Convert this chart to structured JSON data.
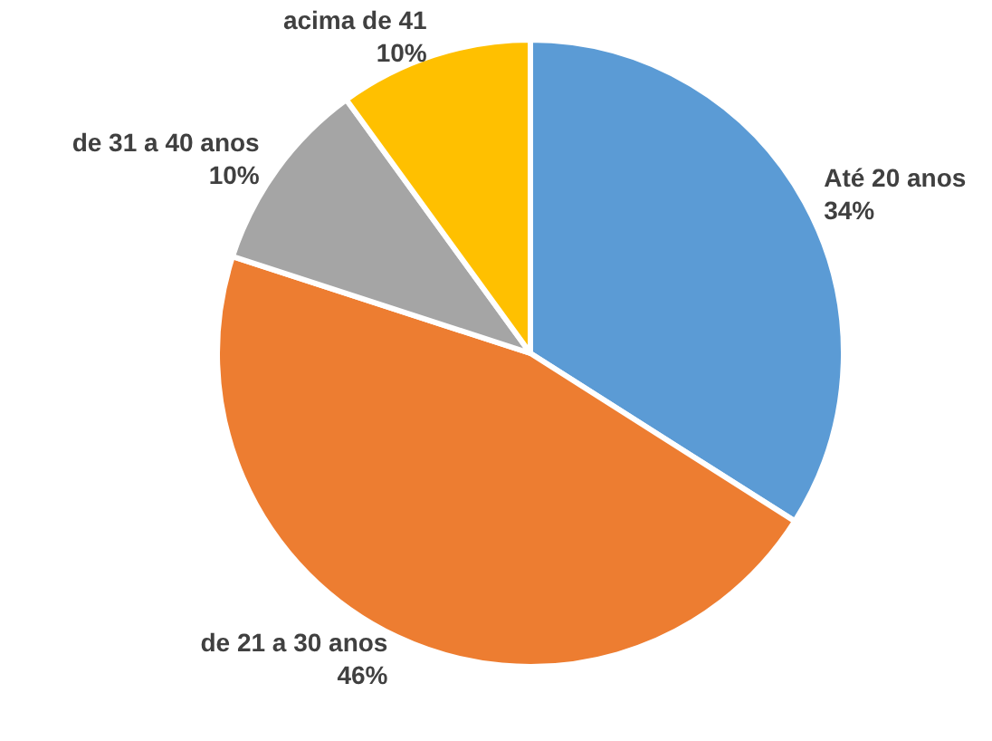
{
  "chart_data": {
    "type": "pie",
    "categories": [
      "Até 20 anos",
      "de 21 a 30 anos",
      "de 31 a 40 anos",
      "acima de 41"
    ],
    "values": [
      34,
      46,
      10,
      10
    ],
    "value_labels": [
      "34%",
      "46%",
      "10%",
      "10%"
    ],
    "colors": [
      "#5b9bd5",
      "#ed7d31",
      "#a5a5a5",
      "#ffc000"
    ]
  }
}
